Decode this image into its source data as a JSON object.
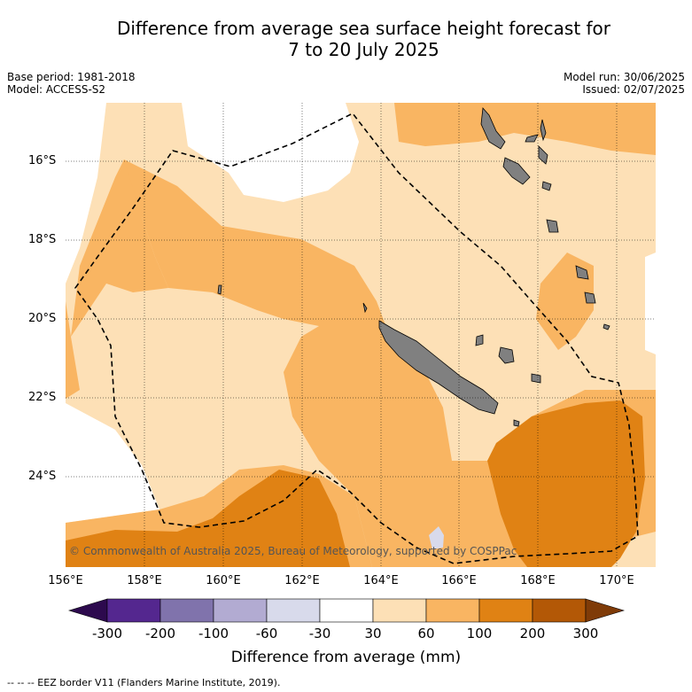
{
  "title_line1": "Difference from average sea surface height forecast for",
  "title_line2": "7 to 20 July 2025",
  "base_period": "Base period: 1981-2018",
  "model": "Model: ACCESS-S2",
  "model_run": "Model run: 30/06/2025",
  "issued": "Issued: 02/07/2025",
  "copyright": "© Commonwealth of Australia 2025, Bureau of Meteorology, supported by COSPPac",
  "footnote": "--  --  -- EEZ border V11 (Flanders Marine Institute, 2019).",
  "lat_labels": [
    "16°S",
    "18°S",
    "20°S",
    "22°S",
    "24°S"
  ],
  "lon_labels": [
    "156°E",
    "158°E",
    "160°E",
    "162°E",
    "164°E",
    "166°E",
    "168°E",
    "170°E"
  ],
  "colorbar": {
    "title": "Difference from average (mm)",
    "ticks": [
      "-300",
      "-200",
      "-100",
      "-60",
      "-30",
      "30",
      "60",
      "100",
      "200",
      "300"
    ],
    "colors": [
      "#2d0a4e",
      "#54278f",
      "#8073ac",
      "#b2abd2",
      "#d8daeb",
      "#ffffff",
      "#fde0b6",
      "#f9b562",
      "#e08214",
      "#b35806",
      "#7f3b08"
    ]
  },
  "land_color": "#808080"
}
